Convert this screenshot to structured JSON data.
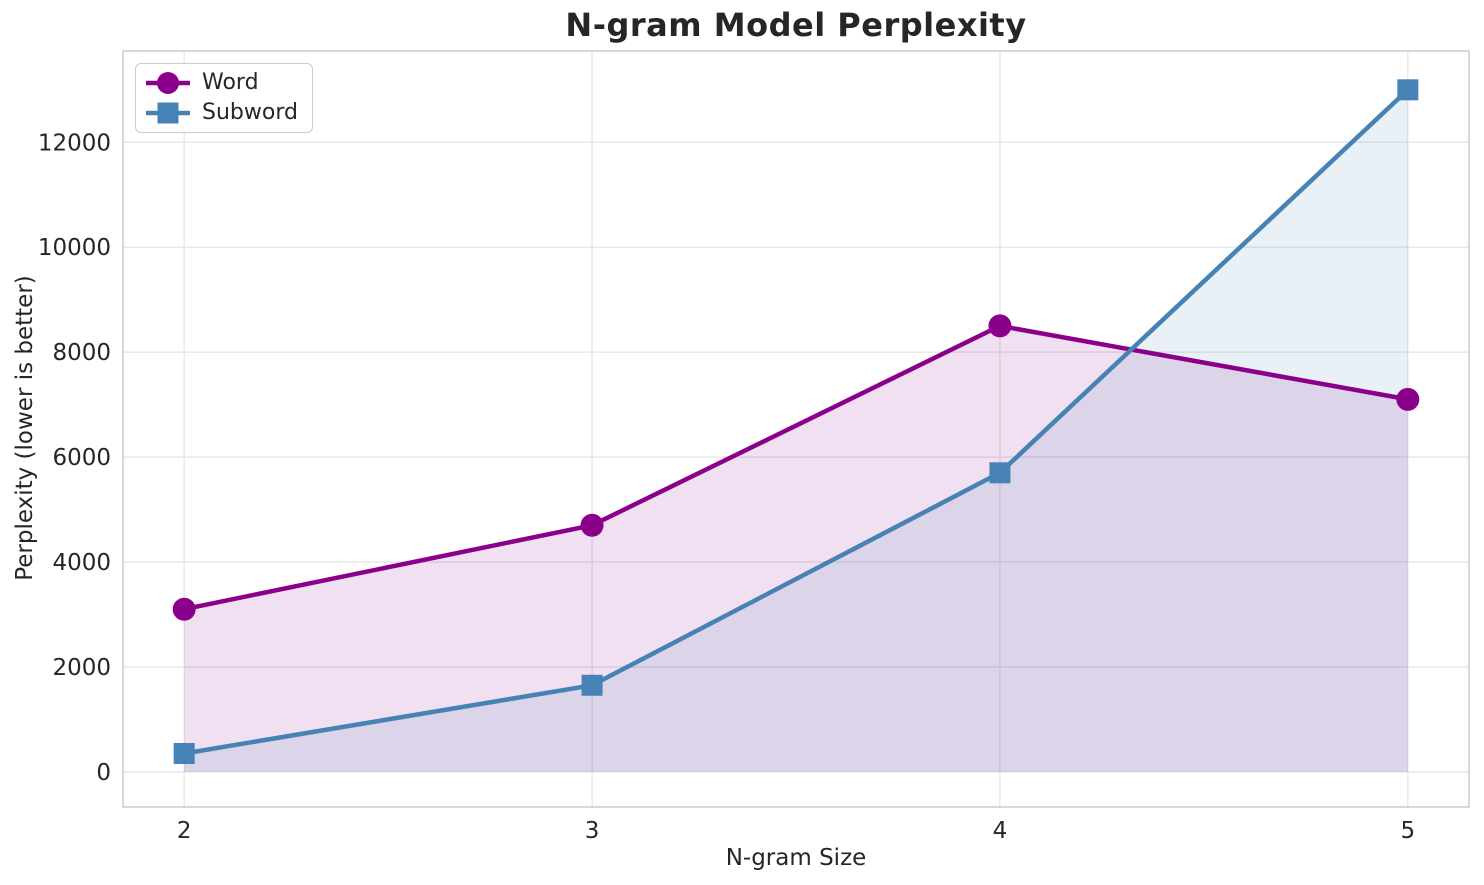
{
  "figure": {
    "background": "#ffffff",
    "text_color": "#262626",
    "grid_color": "#e8e8e8",
    "spine_color": "#cccccc"
  },
  "chart_data": {
    "type": "line",
    "title": "N-gram Model Perplexity",
    "xlabel": "N-gram Size",
    "ylabel": "Perplexity (lower is better)",
    "x": [
      2,
      3,
      4,
      5
    ],
    "xticks": [
      "2",
      "3",
      "4",
      "5"
    ],
    "yticks": [
      0,
      2000,
      4000,
      6000,
      8000,
      10000,
      12000
    ],
    "xlim": [
      1.85,
      5.15
    ],
    "ylim": [
      -670,
      13740
    ],
    "grid": true,
    "legend_position": "upper left",
    "series": [
      {
        "name": "Word",
        "values": [
          3100,
          4700,
          8500,
          7100
        ],
        "color": "#8b008b",
        "marker": "circle",
        "fill_to_zero": true,
        "fill_opacity": 0.12
      },
      {
        "name": "Subword",
        "values": [
          350,
          1650,
          5700,
          13000
        ],
        "color": "#4682b4",
        "marker": "square",
        "fill_to_zero": true,
        "fill_opacity": 0.12
      }
    ]
  }
}
